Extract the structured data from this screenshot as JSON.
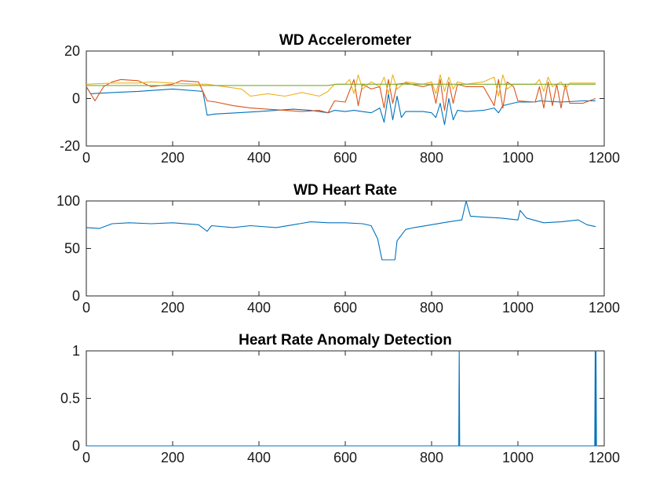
{
  "chart_data": [
    {
      "type": "line",
      "title": "WD Accelerometer",
      "xlabel": "",
      "ylabel": "",
      "xlim": [
        0,
        1200
      ],
      "ylim": [
        -20,
        20
      ],
      "xticks": [
        0,
        200,
        400,
        600,
        800,
        1000,
        1200
      ],
      "yticks": [
        -20,
        0,
        20
      ],
      "grid": false,
      "series": [
        {
          "color": "#0072BD",
          "points": [
            [
              0,
              5
            ],
            [
              10,
              2
            ],
            [
              60,
              2.5
            ],
            [
              120,
              3
            ],
            [
              160,
              3.5
            ],
            [
              200,
              4
            ],
            [
              270,
              3
            ],
            [
              280,
              -7
            ],
            [
              300,
              -6.5
            ],
            [
              350,
              -6
            ],
            [
              400,
              -5.5
            ],
            [
              440,
              -5
            ],
            [
              480,
              -4.5
            ],
            [
              520,
              -5
            ],
            [
              560,
              -6
            ],
            [
              575,
              -5
            ],
            [
              600,
              -5.5
            ],
            [
              620,
              -5
            ],
            [
              660,
              -6
            ],
            [
              680,
              -4
            ],
            [
              690,
              -10
            ],
            [
              700,
              2
            ],
            [
              710,
              -9
            ],
            [
              720,
              1
            ],
            [
              730,
              -8
            ],
            [
              740,
              -5.5
            ],
            [
              780,
              -5.5
            ],
            [
              800,
              -6
            ],
            [
              810,
              -8
            ],
            [
              820,
              -2
            ],
            [
              830,
              -11
            ],
            [
              840,
              0
            ],
            [
              850,
              -9
            ],
            [
              860,
              -5
            ],
            [
              880,
              -5.5
            ],
            [
              920,
              -5
            ],
            [
              945,
              -4
            ],
            [
              955,
              -6
            ],
            [
              965,
              -3
            ],
            [
              1000,
              -1.5
            ],
            [
              1040,
              -1.5
            ],
            [
              1050,
              -1
            ],
            [
              1100,
              -1.5
            ],
            [
              1150,
              -1
            ],
            [
              1180,
              -1
            ]
          ]
        },
        {
          "color": "#D95319",
          "points": [
            [
              0,
              5
            ],
            [
              20,
              -1
            ],
            [
              40,
              5
            ],
            [
              60,
              7
            ],
            [
              80,
              8
            ],
            [
              120,
              7.5
            ],
            [
              150,
              5
            ],
            [
              200,
              6
            ],
            [
              220,
              7.5
            ],
            [
              260,
              7
            ],
            [
              280,
              -1
            ],
            [
              300,
              -1.5
            ],
            [
              340,
              -3
            ],
            [
              380,
              -4
            ],
            [
              420,
              -4.5
            ],
            [
              460,
              -5
            ],
            [
              500,
              -5.5
            ],
            [
              540,
              -5
            ],
            [
              560,
              -6
            ],
            [
              575,
              -1
            ],
            [
              600,
              -1.5
            ],
            [
              620,
              8
            ],
            [
              630,
              -3
            ],
            [
              640,
              6
            ],
            [
              660,
              4
            ],
            [
              680,
              5
            ],
            [
              690,
              -4
            ],
            [
              700,
              8
            ],
            [
              710,
              -2
            ],
            [
              720,
              6
            ],
            [
              740,
              6.5
            ],
            [
              780,
              5
            ],
            [
              800,
              6
            ],
            [
              810,
              -2
            ],
            [
              820,
              8
            ],
            [
              830,
              -5
            ],
            [
              840,
              7
            ],
            [
              850,
              -2
            ],
            [
              860,
              6
            ],
            [
              880,
              5
            ],
            [
              920,
              5
            ],
            [
              945,
              -3
            ],
            [
              955,
              8
            ],
            [
              965,
              -4
            ],
            [
              975,
              7
            ],
            [
              990,
              5
            ],
            [
              1000,
              -1
            ],
            [
              1040,
              -1.5
            ],
            [
              1050,
              5
            ],
            [
              1060,
              -4
            ],
            [
              1070,
              7
            ],
            [
              1080,
              -3
            ],
            [
              1090,
              6
            ],
            [
              1100,
              -4
            ],
            [
              1110,
              6
            ],
            [
              1120,
              -2
            ],
            [
              1150,
              -2
            ],
            [
              1180,
              0
            ]
          ]
        },
        {
          "color": "#EDB120",
          "points": [
            [
              0,
              6
            ],
            [
              60,
              6.5
            ],
            [
              120,
              6.5
            ],
            [
              150,
              7
            ],
            [
              200,
              6.5
            ],
            [
              260,
              6
            ],
            [
              280,
              6
            ],
            [
              320,
              5
            ],
            [
              360,
              4
            ],
            [
              380,
              1
            ],
            [
              420,
              2
            ],
            [
              460,
              1
            ],
            [
              500,
              2.5
            ],
            [
              540,
              1
            ],
            [
              560,
              3
            ],
            [
              575,
              6
            ],
            [
              600,
              6
            ],
            [
              610,
              8
            ],
            [
              620,
              2
            ],
            [
              630,
              10
            ],
            [
              640,
              4
            ],
            [
              660,
              7
            ],
            [
              680,
              5
            ],
            [
              690,
              9
            ],
            [
              700,
              2
            ],
            [
              710,
              10
            ],
            [
              720,
              4
            ],
            [
              740,
              7
            ],
            [
              780,
              6
            ],
            [
              800,
              7
            ],
            [
              810,
              2
            ],
            [
              820,
              10
            ],
            [
              830,
              3
            ],
            [
              840,
              9
            ],
            [
              850,
              4
            ],
            [
              860,
              7
            ],
            [
              880,
              6
            ],
            [
              920,
              7
            ],
            [
              945,
              9
            ],
            [
              955,
              1
            ],
            [
              965,
              10
            ],
            [
              975,
              4
            ],
            [
              990,
              6
            ],
            [
              1040,
              6
            ],
            [
              1050,
              8
            ],
            [
              1060,
              3
            ],
            [
              1070,
              9
            ],
            [
              1080,
              5
            ],
            [
              1100,
              7
            ],
            [
              1110,
              4
            ],
            [
              1120,
              6.5
            ],
            [
              1150,
              6.5
            ],
            [
              1180,
              6.5
            ]
          ]
        },
        {
          "color": "#77AC30",
          "points": [
            [
              0,
              5.5
            ],
            [
              200,
              5.5
            ],
            [
              560,
              5.5
            ],
            [
              580,
              6
            ],
            [
              700,
              6
            ],
            [
              1000,
              6
            ],
            [
              1180,
              6
            ]
          ]
        }
      ]
    },
    {
      "type": "line",
      "title": "WD Heart Rate",
      "xlabel": "",
      "ylabel": "",
      "xlim": [
        0,
        1200
      ],
      "ylim": [
        0,
        100
      ],
      "xticks": [
        0,
        200,
        400,
        600,
        800,
        1000,
        1200
      ],
      "yticks": [
        0,
        50,
        100
      ],
      "grid": false,
      "series": [
        {
          "color": "#0072BD",
          "points": [
            [
              0,
              72
            ],
            [
              30,
              71
            ],
            [
              60,
              76
            ],
            [
              100,
              77
            ],
            [
              150,
              76
            ],
            [
              200,
              77
            ],
            [
              260,
              75
            ],
            [
              280,
              68
            ],
            [
              290,
              74
            ],
            [
              340,
              72
            ],
            [
              380,
              74
            ],
            [
              440,
              72
            ],
            [
              480,
              75
            ],
            [
              520,
              78
            ],
            [
              560,
              77
            ],
            [
              600,
              77
            ],
            [
              640,
              76
            ],
            [
              660,
              74
            ],
            [
              675,
              60
            ],
            [
              685,
              38
            ],
            [
              700,
              38
            ],
            [
              715,
              38
            ],
            [
              720,
              58
            ],
            [
              740,
              70
            ],
            [
              760,
              72
            ],
            [
              800,
              75
            ],
            [
              840,
              78
            ],
            [
              870,
              80
            ],
            [
              880,
              100
            ],
            [
              890,
              84
            ],
            [
              920,
              83
            ],
            [
              960,
              82
            ],
            [
              1000,
              80
            ],
            [
              1005,
              90
            ],
            [
              1020,
              82
            ],
            [
              1060,
              77
            ],
            [
              1100,
              78
            ],
            [
              1140,
              80
            ],
            [
              1160,
              75
            ],
            [
              1180,
              73
            ]
          ]
        }
      ]
    },
    {
      "type": "line",
      "title": "Heart Rate Anomaly Detection",
      "xlabel": "",
      "ylabel": "",
      "xlim": [
        0,
        1200
      ],
      "ylim": [
        0,
        1
      ],
      "xticks": [
        0,
        200,
        400,
        600,
        800,
        1000,
        1200
      ],
      "yticks": [
        0,
        0.5,
        1
      ],
      "grid": false,
      "series": [
        {
          "color": "#0072BD",
          "points": [
            [
              0,
              0
            ],
            [
              863,
              0
            ],
            [
              864,
              1
            ],
            [
              865,
              0
            ],
            [
              1178,
              0
            ],
            [
              1179,
              1
            ],
            [
              1180,
              0
            ],
            [
              1181,
              1
            ],
            [
              1182,
              0
            ],
            [
              1185,
              0
            ]
          ]
        }
      ]
    }
  ]
}
